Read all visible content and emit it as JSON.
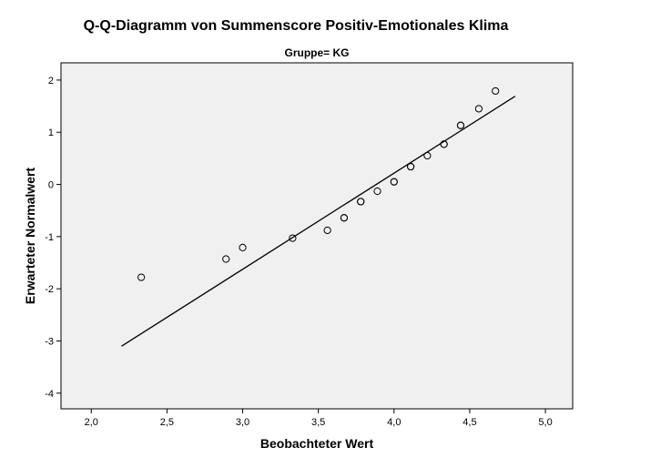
{
  "chart_data": {
    "type": "scatter",
    "title": "Q-Q-Diagramm von Summenscore Positiv-Emotionales Klima",
    "subtitle": "Gruppe= KG",
    "xlabel": "Beobachteter Wert",
    "ylabel": "Erwarteter Normalwert",
    "xlim": [
      1.8,
      5.18
    ],
    "ylim": [
      -4.3,
      2.33
    ],
    "x_ticks": [
      2.0,
      2.5,
      3.0,
      3.5,
      4.0,
      4.5,
      5.0
    ],
    "x_tick_labels": [
      "2,0",
      "2,5",
      "3,0",
      "3,5",
      "4,0",
      "4,5",
      "5,0"
    ],
    "y_ticks": [
      2,
      1,
      0,
      -1,
      -2,
      -3,
      -4
    ],
    "y_tick_labels": [
      "2",
      "1",
      "0",
      "-1",
      "-2",
      "-3",
      "-4"
    ],
    "grid": false,
    "background": "#f0f0f0",
    "marker_color": "#000000",
    "series": [
      {
        "marker": "open-circle",
        "points": [
          [
            2.33,
            -1.78
          ],
          [
            2.89,
            -1.43
          ],
          [
            3.0,
            -1.21
          ],
          [
            3.33,
            -1.03
          ],
          [
            3.56,
            -0.88
          ],
          [
            3.67,
            -0.64
          ],
          [
            3.67,
            -0.64
          ],
          [
            3.78,
            -0.33
          ],
          [
            3.78,
            -0.33
          ],
          [
            3.89,
            -0.13
          ],
          [
            4.0,
            0.05
          ],
          [
            4.0,
            0.05
          ],
          [
            4.11,
            0.34
          ],
          [
            4.11,
            0.34
          ],
          [
            4.22,
            0.55
          ],
          [
            4.33,
            0.77
          ],
          [
            4.33,
            0.77
          ],
          [
            4.44,
            1.13
          ],
          [
            4.44,
            1.13
          ],
          [
            4.56,
            1.45
          ],
          [
            4.67,
            1.79
          ]
        ]
      }
    ],
    "reference_line": {
      "from": [
        2.2,
        -3.1
      ],
      "to": [
        4.8,
        1.69
      ]
    }
  }
}
